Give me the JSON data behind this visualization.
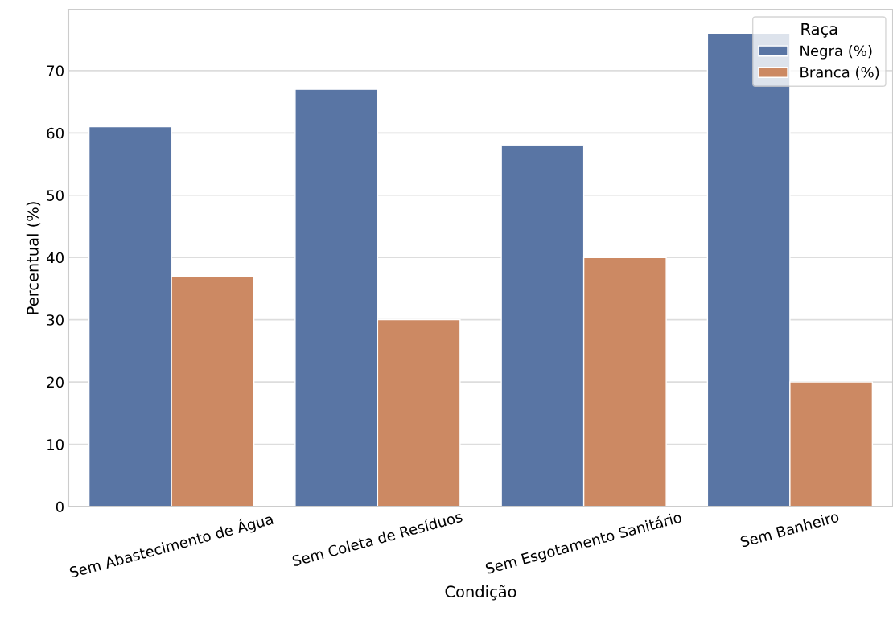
{
  "chart_data": {
    "type": "bar",
    "xlabel": "Condição",
    "ylabel": "Percentual (%)",
    "legend_title": "Raça",
    "categories": [
      "Sem Abastecimento de Água",
      "Sem Coleta de Resíduos",
      "Sem Esgotamento Sanitário",
      "Sem Banheiro"
    ],
    "series": [
      {
        "name": "Negra (%)",
        "color": "#5975a4",
        "values": [
          61,
          67,
          58,
          76
        ]
      },
      {
        "name": "Branca (%)",
        "color": "#cc8963",
        "values": [
          37,
          30,
          40,
          20
        ]
      }
    ],
    "ylim": [
      0,
      79.8
    ],
    "yticks": [
      0,
      10,
      20,
      30,
      40,
      50,
      60,
      70
    ],
    "grid": "y",
    "legend": "top right"
  }
}
